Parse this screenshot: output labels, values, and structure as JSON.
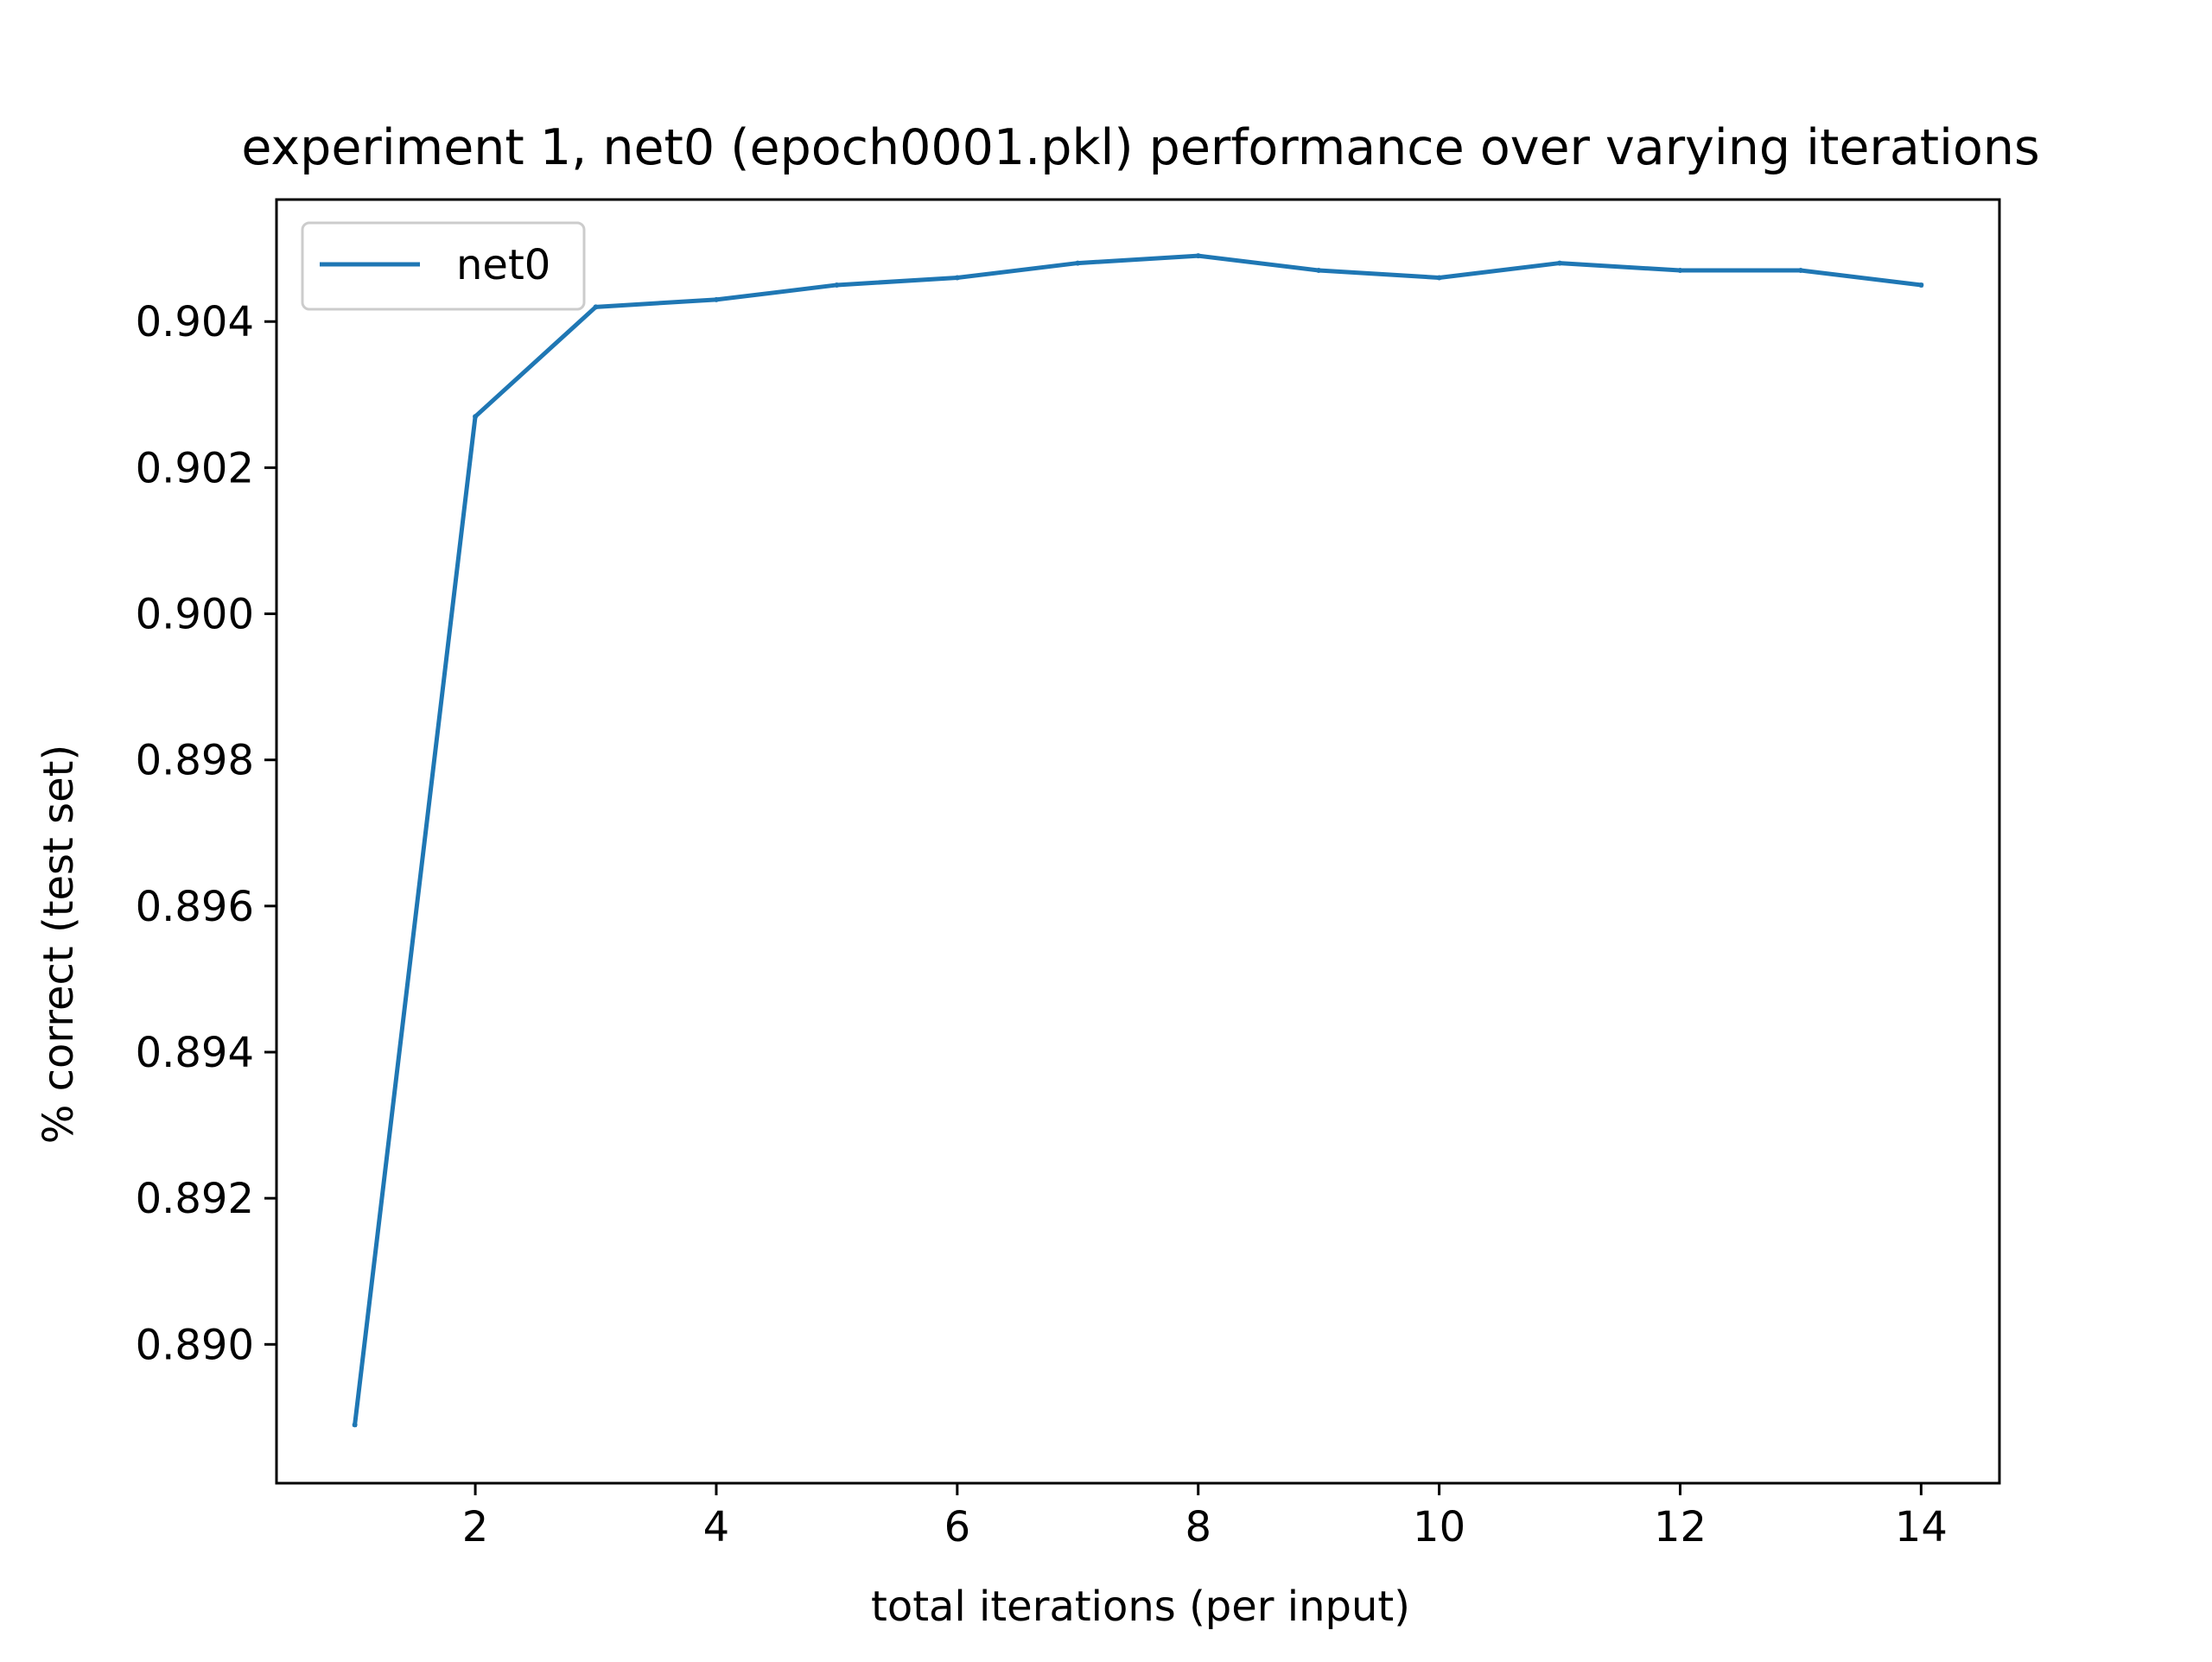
{
  "chart_data": {
    "type": "line",
    "title": "experiment 1, net0 (epoch0001.pkl) performance over varying iterations",
    "xlabel": "total iterations (per input)",
    "ylabel": "% correct (test set)",
    "x": [
      1,
      2,
      3,
      4,
      5,
      6,
      7,
      8,
      9,
      10,
      11,
      12,
      13,
      14
    ],
    "series": [
      {
        "name": "net0",
        "color": "#1f77b4",
        "values": [
          0.8889,
          0.9027,
          0.9042,
          0.9043,
          0.9045,
          0.9046,
          0.9048,
          0.9049,
          0.9047,
          0.9046,
          0.9048,
          0.9047,
          0.9047,
          0.9045
        ]
      }
    ],
    "xlim": [
      0.35,
      14.65
    ],
    "ylim": [
      0.8881,
      0.90567
    ],
    "xticks": [
      2,
      4,
      6,
      8,
      10,
      12,
      14
    ],
    "xtick_labels": [
      "2",
      "4",
      "6",
      "8",
      "10",
      "12",
      "14"
    ],
    "yticks": [
      0.89,
      0.892,
      0.894,
      0.896,
      0.898,
      0.9,
      0.902,
      0.904
    ],
    "ytick_labels": [
      "0.890",
      "0.892",
      "0.894",
      "0.896",
      "0.898",
      "0.900",
      "0.902",
      "0.904"
    ],
    "grid": false,
    "legend_position": "upper-left"
  }
}
